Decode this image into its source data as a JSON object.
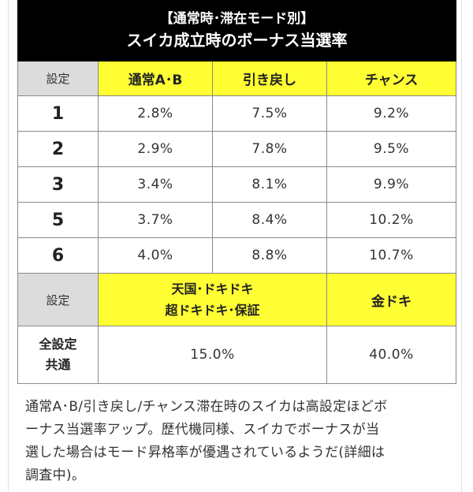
{
  "title": {
    "line1": "【通常時･滞在モード別】",
    "line2": "スイカ成立時のボーナス当選率"
  },
  "table1": {
    "headers": [
      "設定",
      "通常A･B",
      "引き戻し",
      "チャンス"
    ],
    "rows": [
      {
        "setting": "1",
        "values": [
          "2.8%",
          "7.5%",
          "9.2%"
        ]
      },
      {
        "setting": "2",
        "values": [
          "2.9%",
          "7.8%",
          "9.5%"
        ]
      },
      {
        "setting": "3",
        "values": [
          "3.4%",
          "8.1%",
          "9.9%"
        ]
      },
      {
        "setting": "5",
        "values": [
          "3.7%",
          "8.4%",
          "10.2%"
        ]
      },
      {
        "setting": "6",
        "values": [
          "4.0%",
          "8.8%",
          "10.7%"
        ]
      }
    ]
  },
  "table2": {
    "header_setting": "設定",
    "header_col1_line1": "天国･ドキドキ",
    "header_col1_line2": "超ドキドキ･保証",
    "header_col2": "金ドキ",
    "row_label_line1": "全設定",
    "row_label_line2": "共通",
    "values": [
      "15.0%",
      "40.0%"
    ]
  },
  "note": {
    "lines": [
      "通常A･B/引き戻し/チャンス滞在時のスイカは高設定ほどボ",
      "ーナス当選率アップ。歴代機同様、スイカでボーナスが当",
      "選した場合はモード昇格率が優遇されているようだ(詳細は",
      "調査中)。"
    ]
  }
}
